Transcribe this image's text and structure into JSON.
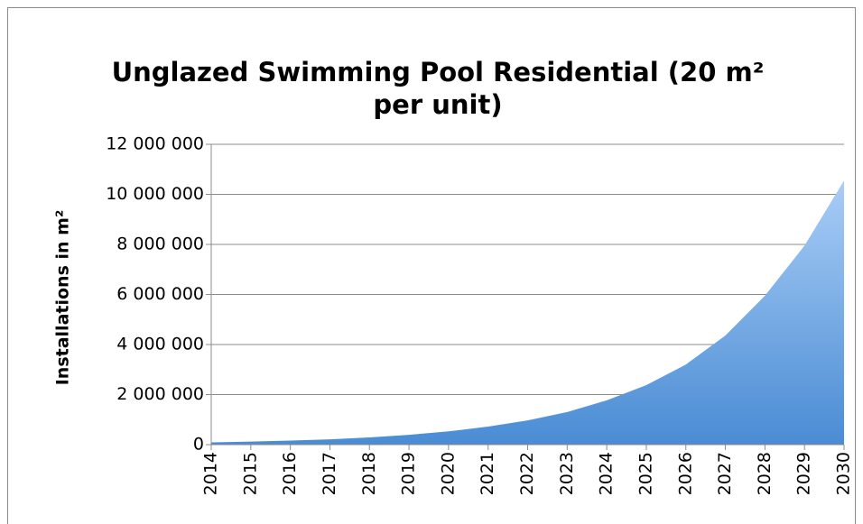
{
  "chart_data": {
    "type": "area",
    "title": "Unglazed Swimming Pool Residential (20 m² per unit)",
    "ylabel": "Installations in m²",
    "categories": [
      "2014",
      "2015",
      "2016",
      "2017",
      "2018",
      "2019",
      "2020",
      "2021",
      "2022",
      "2023",
      "2024",
      "2025",
      "2026",
      "2027",
      "2028",
      "2029",
      "2030"
    ],
    "values": [
      90000,
      120000,
      160000,
      210000,
      290000,
      390000,
      530000,
      720000,
      970000,
      1300000,
      1770000,
      2380000,
      3200000,
      4360000,
      5950000,
      7950000,
      10550000
    ],
    "ylim": [
      0,
      12000000
    ],
    "yticks": [
      0,
      {
        "value": 2000000,
        "label": "2 000 000"
      },
      {
        "value": 4000000,
        "label": "4 000 000"
      },
      {
        "value": 6000000,
        "label": "6 000 000"
      },
      {
        "value": 8000000,
        "label": "8 000 000"
      },
      {
        "value": 10000000,
        "label": "10 000 000"
      },
      {
        "value": 12000000,
        "label": "12 000 000"
      }
    ],
    "grid": true,
    "color_top": "#a9cdf6",
    "color_bottom": "#4a8cd4"
  }
}
